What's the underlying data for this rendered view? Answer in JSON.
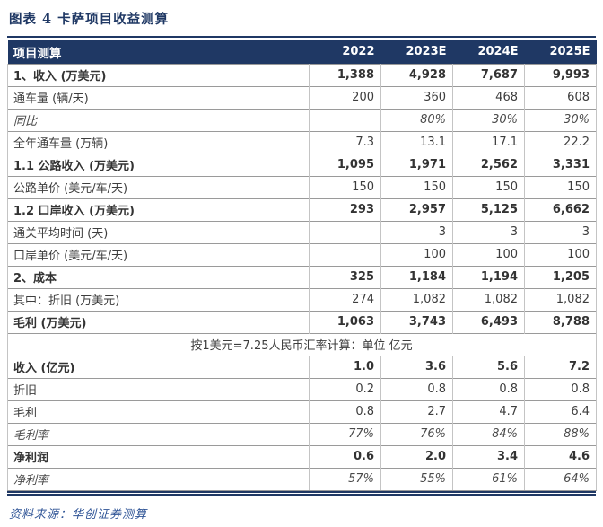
{
  "title": "图表 4  卡萨项目收益测算",
  "source": "资料来源：华创证券测算",
  "colors": {
    "accent_navy": "#1F3864",
    "source_blue": "#2F5496",
    "body_text": "#3d3d3d",
    "grid_h": "#9a9a9a",
    "grid_v": "#c4c4c4",
    "header_text": "#ffffff"
  },
  "table": {
    "header": [
      "项目测算",
      "2022",
      "2023E",
      "2024E",
      "2025E"
    ],
    "rows": [
      {
        "label": "1、收入 (万美元)",
        "values": [
          "1,388",
          "4,928",
          "7,687",
          "9,993"
        ],
        "style": "bold"
      },
      {
        "label": "通车量 (辆/天)",
        "values": [
          "200",
          "360",
          "468",
          "608"
        ],
        "style": "normal"
      },
      {
        "label": "同比",
        "values": [
          "",
          "80%",
          "30%",
          "30%"
        ],
        "style": "italic"
      },
      {
        "label": "全年通车量 (万辆)",
        "values": [
          "7.3",
          "13.1",
          "17.1",
          "22.2"
        ],
        "style": "normal"
      },
      {
        "label": "1.1 公路收入 (万美元)",
        "values": [
          "1,095",
          "1,971",
          "2,562",
          "3,331"
        ],
        "style": "bold"
      },
      {
        "label": "公路单价 (美元/车/天)",
        "values": [
          "150",
          "150",
          "150",
          "150"
        ],
        "style": "normal"
      },
      {
        "label": "1.2 口岸收入 (万美元)",
        "values": [
          "293",
          "2,957",
          "5,125",
          "6,662"
        ],
        "style": "bold"
      },
      {
        "label": "通关平均时间 (天)",
        "values": [
          "",
          "3",
          "3",
          "3"
        ],
        "style": "normal"
      },
      {
        "label": "口岸单价 (美元/车/天)",
        "values": [
          "",
          "100",
          "100",
          "100"
        ],
        "style": "normal"
      },
      {
        "label": "2、成本",
        "values": [
          "325",
          "1,184",
          "1,194",
          "1,205"
        ],
        "style": "bold"
      },
      {
        "label": "其中：折旧 (万美元)",
        "values": [
          "274",
          "1,082",
          "1,082",
          "1,082"
        ],
        "style": "normal",
        "indent": true
      },
      {
        "label": "毛利 (万美元)",
        "values": [
          "1,063",
          "3,743",
          "6,493",
          "8,788"
        ],
        "style": "bold"
      },
      {
        "type": "merged",
        "label": "按1美元=7.25人民币汇率计算：单位 亿元"
      },
      {
        "label": "收入 (亿元)",
        "values": [
          "1.0",
          "3.6",
          "5.6",
          "7.2"
        ],
        "style": "bold"
      },
      {
        "label": "折旧",
        "values": [
          "0.2",
          "0.8",
          "0.8",
          "0.8"
        ],
        "style": "normal"
      },
      {
        "label": "毛利",
        "values": [
          "0.8",
          "2.7",
          "4.7",
          "6.4"
        ],
        "style": "normal"
      },
      {
        "label": "毛利率",
        "values": [
          "77%",
          "76%",
          "84%",
          "88%"
        ],
        "style": "italic"
      },
      {
        "label": "净利润",
        "values": [
          "0.6",
          "2.0",
          "3.4",
          "4.6"
        ],
        "style": "bold"
      },
      {
        "label": "净利率",
        "values": [
          "57%",
          "55%",
          "61%",
          "64%"
        ],
        "style": "italic"
      }
    ]
  }
}
